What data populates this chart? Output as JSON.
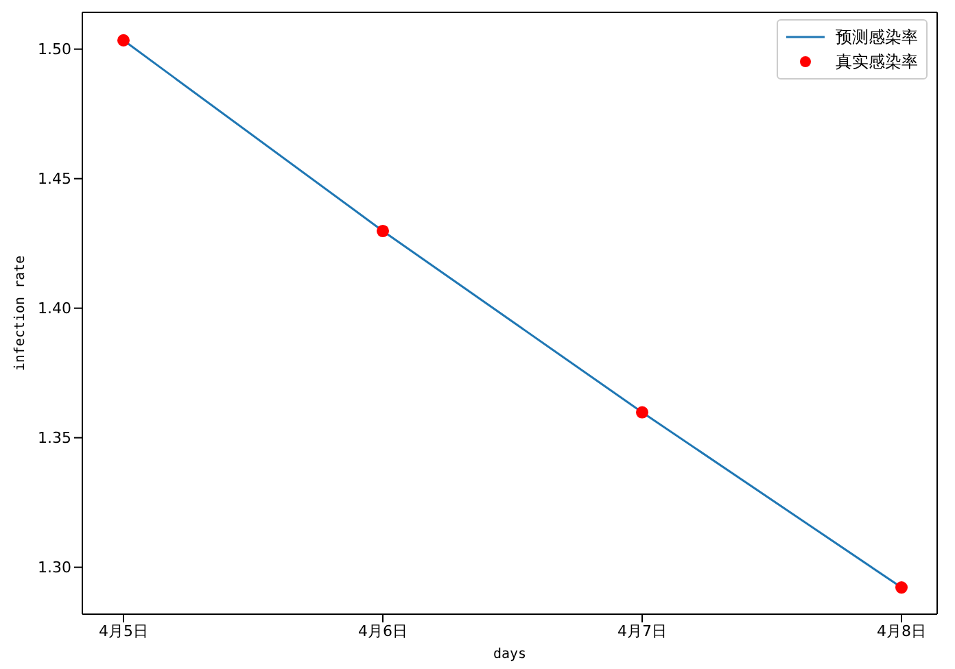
{
  "chart_data": {
    "type": "line",
    "xlabel": "days",
    "ylabel": "infection rate",
    "categories": [
      "4月5日",
      "4月6日",
      "4月7日",
      "4月8日"
    ],
    "series": [
      {
        "name": "预测感染率",
        "color": "#1f77b4",
        "marker": "none",
        "values": [
          1.5034,
          1.4298,
          1.3598,
          1.2922
        ]
      },
      {
        "name": "真实感染率",
        "type": "scatter",
        "color": "#ff0000",
        "marker": "circle",
        "values": [
          1.5034,
          1.4298,
          1.3598,
          1.2922
        ]
      }
    ],
    "ylim": [
      1.2819,
      1.5142
    ],
    "yticks": [
      {
        "value": 1.3,
        "label": "1.30"
      },
      {
        "value": 1.35,
        "label": "1.35"
      },
      {
        "value": 1.4,
        "label": "1.40"
      },
      {
        "value": 1.45,
        "label": "1.45"
      },
      {
        "value": 1.5,
        "label": "1.50"
      }
    ],
    "legend": "top right",
    "line_style": "solid",
    "grid": false
  }
}
